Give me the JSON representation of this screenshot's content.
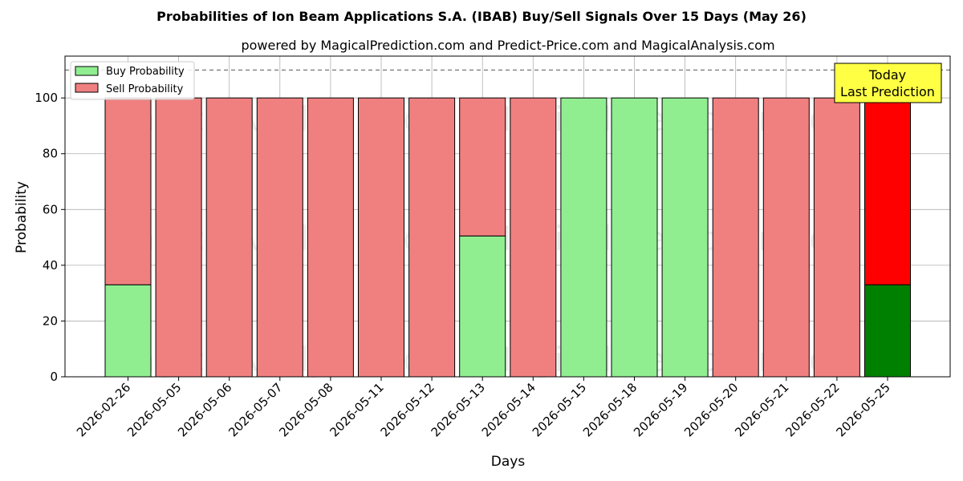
{
  "chart_data": {
    "type": "bar",
    "stacked": true,
    "title": "Probabilities of Ion Beam Applications S.A. (IBAB) Buy/Sell Signals Over 15 Days (May 26)",
    "subtitle": "powered by MagicalPrediction.com and Predict-Price.com and MagicalAnalysis.com",
    "xlabel": "Days",
    "ylabel": "Probability",
    "ylim": [
      0,
      115
    ],
    "yticks": [
      0,
      20,
      40,
      60,
      80,
      100
    ],
    "grid": true,
    "legend_position": "top-left",
    "reference_line": 110,
    "categories": [
      "2026-02-26",
      "2026-05-05",
      "2026-05-06",
      "2026-05-07",
      "2026-05-08",
      "2026-05-11",
      "2026-05-12",
      "2026-05-13",
      "2026-05-14",
      "2026-05-15",
      "2026-05-18",
      "2026-05-19",
      "2026-05-20",
      "2026-05-21",
      "2026-05-22",
      "2026-05-25"
    ],
    "series": [
      {
        "name": "Buy Probability",
        "color": "#90ee90",
        "highlight_color": "#008000",
        "values": [
          33,
          0,
          0,
          0,
          0,
          0,
          0,
          50.5,
          0,
          100,
          100,
          100,
          0,
          0,
          0,
          33
        ]
      },
      {
        "name": "Sell Probability",
        "color": "#f08080",
        "highlight_color": "#ff0000",
        "values": [
          67,
          100,
          100,
          100,
          100,
          100,
          100,
          49.5,
          100,
          0,
          0,
          0,
          100,
          100,
          100,
          67
        ]
      }
    ],
    "highlight_index": 15,
    "annotation": {
      "line1": "Today",
      "line2": "Last Prediction",
      "color": "#ffff44"
    },
    "watermarks": [
      "MagicalAnalysis.com",
      "MagicalPrediction.com"
    ]
  }
}
